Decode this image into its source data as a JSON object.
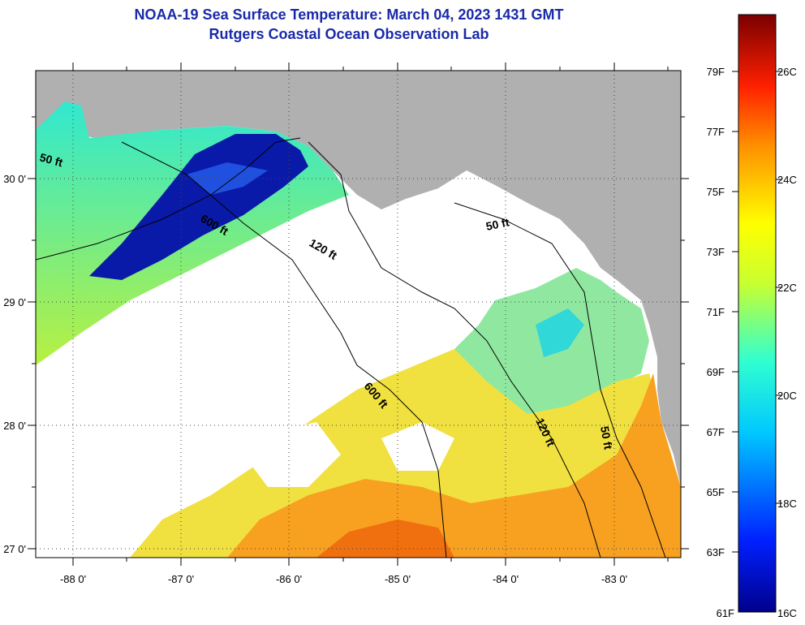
{
  "header": {
    "title": "NOAA-19 Sea Surface Temperature:  March 04, 2023 1431 GMT",
    "subtitle": "Rutgers Coastal Ocean Observation Lab"
  },
  "axes": {
    "longitude_labels": [
      "-88 0'",
      "-87 0'",
      "-86 0'",
      "-85 0'",
      "-84 0'",
      "-83 0'"
    ],
    "latitude_labels": [
      "30 0'",
      "29 0'",
      "28 0'",
      "27 0'"
    ]
  },
  "contours": {
    "labels": [
      "50 ft",
      "600 ft",
      "120 ft",
      "50 ft",
      "600 ft",
      "120 ft",
      "50 ft"
    ]
  },
  "colorbar": {
    "fahrenheit": [
      "79F",
      "77F",
      "75F",
      "73F",
      "71F",
      "69F",
      "67F",
      "65F",
      "63F",
      "61F"
    ],
    "celsius": [
      "26C",
      "24C",
      "22C",
      "20C",
      "18C",
      "16C"
    ]
  },
  "colors": {
    "land": "#b0b0b0",
    "cloud": "#ffffff",
    "title": "#1a2aa8"
  }
}
